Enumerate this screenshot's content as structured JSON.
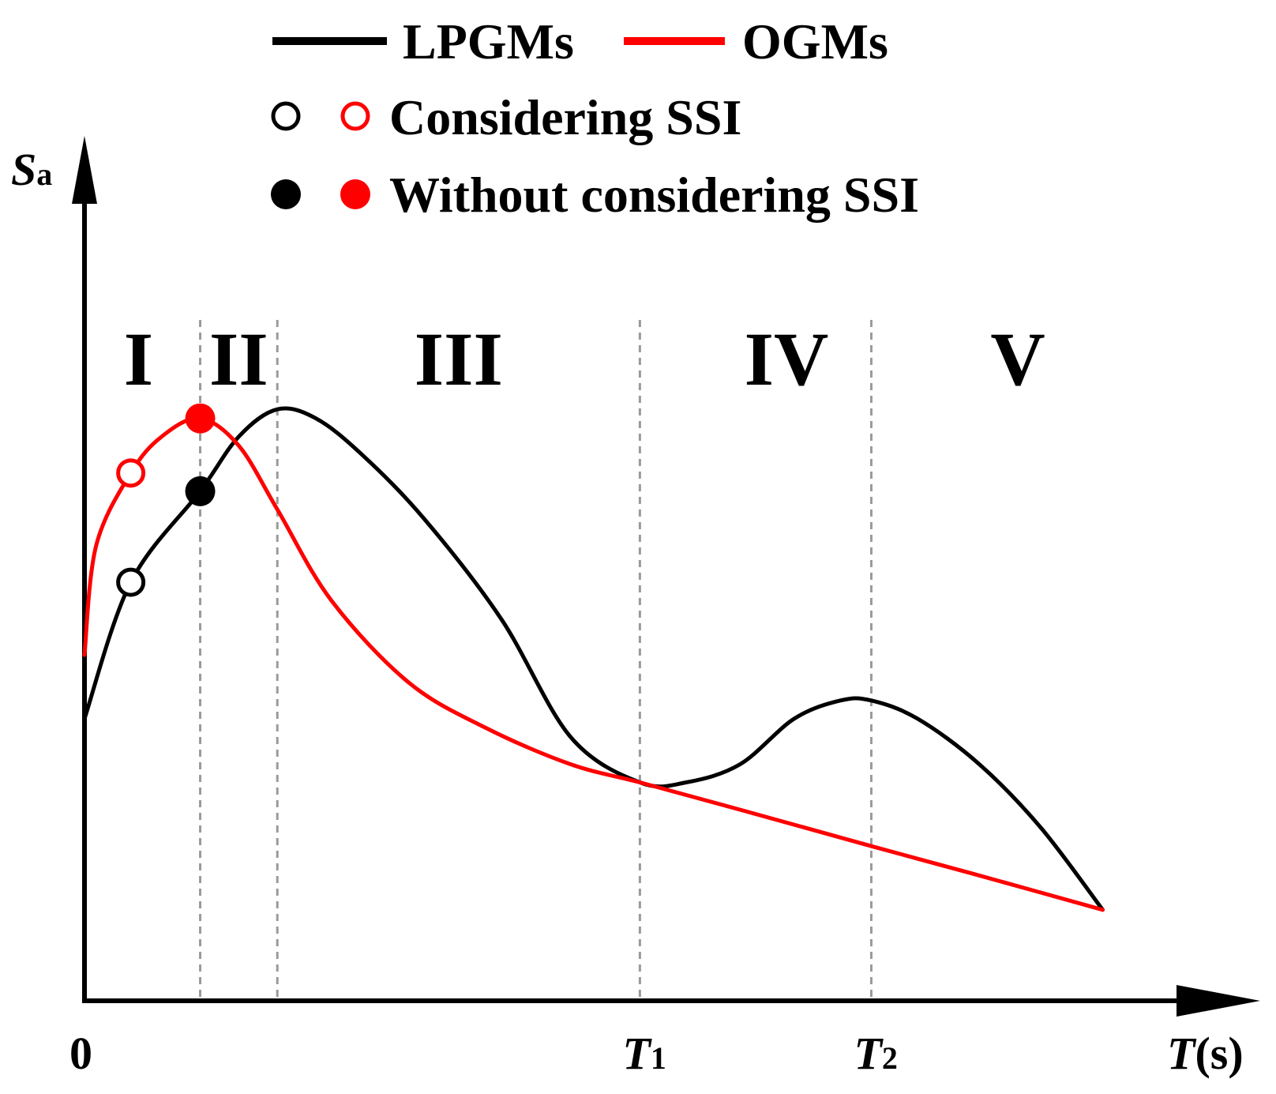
{
  "chart_data": {
    "type": "line",
    "title": "",
    "xlabel": {
      "symbol": "T",
      "unit": "(s)"
    },
    "ylabel": {
      "symbol": "S",
      "subscript": "a"
    },
    "x_origin_label": "0",
    "x_ticks": [
      {
        "id": "T1",
        "x": 7.2,
        "symbol": "T",
        "subscript": "1"
      },
      {
        "id": "T2",
        "x": 10.2,
        "symbol": "T",
        "subscript": "2"
      }
    ],
    "xlim": [
      0,
      14.3
    ],
    "ylim": [
      0,
      1.0
    ],
    "grid": false,
    "region_boundaries": [
      1.5,
      2.5,
      7.2,
      10.2
    ],
    "regions": [
      {
        "label": "I",
        "x": 0.7
      },
      {
        "label": "II",
        "x": 2.0
      },
      {
        "label": "III",
        "x": 4.85
      },
      {
        "label": "IV",
        "x": 9.1
      },
      {
        "label": "V",
        "x": 12.1
      }
    ],
    "series": [
      {
        "name": "LPGMs",
        "color": "#000000",
        "x": [
          0,
          0.6,
          1.5,
          2.0,
          2.5,
          3.0,
          3.6,
          4.4,
          5.4,
          6.3,
          7.2,
          7.8,
          8.5,
          9.2,
          9.8,
          10.2,
          10.8,
          11.6,
          12.4,
          13.2
        ],
        "y": [
          0.31,
          0.46,
          0.56,
          0.62,
          0.65,
          0.64,
          0.6,
          0.53,
          0.42,
          0.29,
          0.24,
          0.24,
          0.26,
          0.31,
          0.33,
          0.33,
          0.31,
          0.26,
          0.19,
          0.1
        ]
      },
      {
        "name": "OGMs",
        "color": "#ff0000",
        "x": [
          0,
          0.15,
          0.6,
          1.0,
          1.5,
          2.0,
          2.5,
          3.2,
          4.2,
          5.2,
          6.3,
          7.2,
          8.5,
          10.2,
          11.5,
          13.2
        ],
        "y": [
          0.38,
          0.5,
          0.58,
          0.62,
          0.64,
          0.61,
          0.54,
          0.44,
          0.35,
          0.3,
          0.26,
          0.24,
          0.21,
          0.17,
          0.14,
          0.1
        ]
      }
    ],
    "markers": [
      {
        "series": "LPGMs",
        "style": "open",
        "meaning": "Considering SSI",
        "x": 0.6,
        "y": 0.46
      },
      {
        "series": "OGMs",
        "style": "open",
        "meaning": "Considering SSI",
        "x": 0.6,
        "y": 0.58
      },
      {
        "series": "LPGMs",
        "style": "filled",
        "meaning": "Without considering SSI",
        "x": 1.5,
        "y": 0.56
      },
      {
        "series": "OGMs",
        "style": "filled",
        "meaning": "Without considering SSI",
        "x": 1.5,
        "y": 0.64
      }
    ],
    "legend": {
      "placement": "top",
      "lines": [
        {
          "label": "LPGMs",
          "color": "#000000"
        },
        {
          "label": "OGMs",
          "color": "#ff0000"
        }
      ],
      "open_marker_label": "Considering SSI",
      "filled_marker_label": "Without considering SSI"
    }
  }
}
